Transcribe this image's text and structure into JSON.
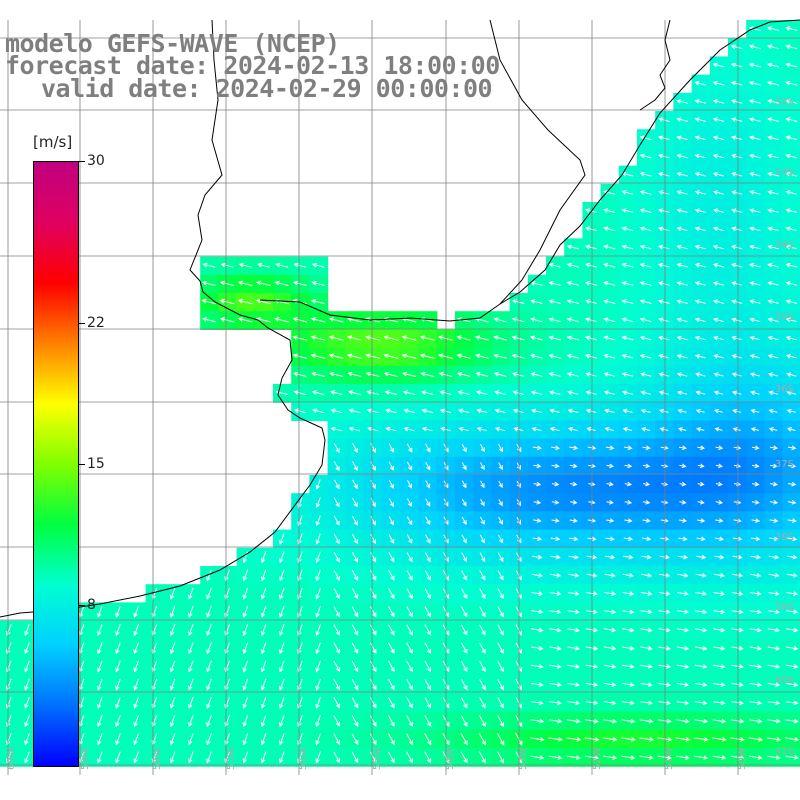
{
  "title": {
    "line1": "modelo GEFS-WAVE (NCEP)",
    "line2": "forecast date: 2024-02-13 18:00:00",
    "line3": "valid date: 2024-02-29 00:00:00"
  },
  "colorbar": {
    "unit": "[m/s]",
    "ticks": [
      {
        "label": "30",
        "value": 30
      },
      {
        "label": "22",
        "value": 22
      },
      {
        "label": "15",
        "value": 15
      },
      {
        "label": "8",
        "value": 8
      }
    ],
    "min": 0,
    "max": 30,
    "stops": [
      "#0000ff",
      "#0070ff",
      "#00d0ff",
      "#00ffd0",
      "#00ff40",
      "#80ff00",
      "#ffff00",
      "#ff8000",
      "#ff0000",
      "#e00060",
      "#c00080"
    ]
  },
  "grid": {
    "lat_labels": [
      "32S",
      "33S",
      "34S",
      "35S",
      "36S",
      "37S",
      "38S",
      "39S",
      "40S",
      "41S"
    ],
    "lon_labels": [
      "60W",
      "59W",
      "58W",
      "57W",
      "56W",
      "55W",
      "54W",
      "53W",
      "52W",
      "51W",
      "50W"
    ]
  },
  "colors": {
    "land": "#ffffff",
    "coast": "#000000",
    "grid": "#808080",
    "arrow": "#ffffff",
    "label": "#aaaaaa"
  }
}
